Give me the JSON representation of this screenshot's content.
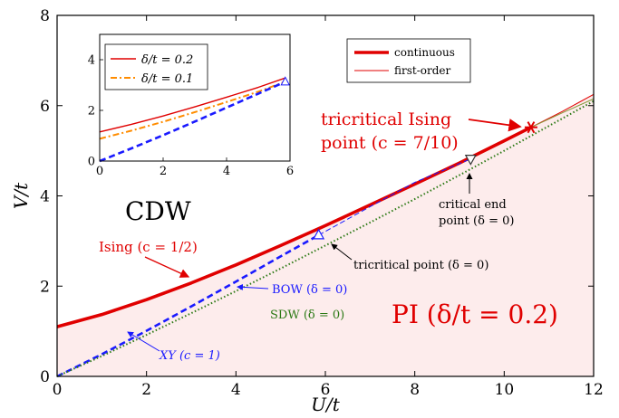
{
  "chart_data": [
    {
      "type": "line",
      "xlabel": "U/t",
      "ylabel": "V/t",
      "xlim": [
        0,
        12
      ],
      "ylim": [
        0,
        8
      ],
      "xticks": [
        "0",
        "2",
        "4",
        "6",
        "8",
        "10",
        "12"
      ],
      "yticks": [
        "0",
        "2",
        "4",
        "6",
        "8"
      ],
      "grid": false,
      "legend_position": "top-right",
      "legend": [
        {
          "label": "continuous",
          "style": "thick-solid",
          "color": "#e00000"
        },
        {
          "label": "first-order",
          "style": "thin-solid",
          "color": "#e00000"
        }
      ],
      "series": [
        {
          "key": "cdw_continuous",
          "color": "#e00000",
          "style": "thick-solid",
          "x": [
            0,
            1,
            2,
            3,
            4,
            5,
            6,
            7,
            8,
            9,
            10,
            10.6
          ],
          "y": [
            1.1,
            1.37,
            1.7,
            2.07,
            2.47,
            2.9,
            3.34,
            3.8,
            4.26,
            4.73,
            5.22,
            5.52
          ]
        },
        {
          "key": "cdw_first_order",
          "color": "#e00000",
          "style": "thin-solid",
          "x": [
            10.6,
            11.3,
            12
          ],
          "y": [
            5.52,
            5.87,
            6.25
          ]
        },
        {
          "key": "bow_continuous",
          "color": "#1a1aff",
          "style": "thick-dashed",
          "x": [
            0,
            1,
            2,
            3,
            4,
            5,
            5.85
          ],
          "y": [
            0,
            0.49,
            1.01,
            1.55,
            2.1,
            2.66,
            3.13
          ]
        },
        {
          "key": "bow_first_order",
          "color": "#1a1aff",
          "style": "thin-dashed",
          "x": [
            5.85,
            7,
            8,
            9.25
          ],
          "y": [
            3.13,
            3.76,
            4.3,
            4.82
          ]
        },
        {
          "key": "sdw",
          "color": "#2d7a16",
          "style": "dotted",
          "x": [
            0,
            1,
            2,
            3,
            4,
            5,
            6,
            7,
            8,
            9,
            10,
            11,
            12
          ],
          "y": [
            0,
            0.45,
            0.92,
            1.4,
            1.89,
            2.39,
            2.9,
            3.41,
            3.93,
            4.46,
            5.0,
            5.55,
            6.1
          ]
        },
        {
          "key": "continuation",
          "color": "#8a9a3a",
          "style": "thin-solid",
          "x": [
            10.6,
            11.3,
            12
          ],
          "y": [
            5.52,
            5.84,
            6.15
          ]
        }
      ],
      "markers": [
        {
          "key": "tricritical_ising",
          "shape": "star",
          "color": "#e00000",
          "x": 10.6,
          "y": 5.52
        },
        {
          "key": "tricritical_point",
          "shape": "triangle-up",
          "color": "#1a1aff",
          "x": 5.85,
          "y": 3.13
        },
        {
          "key": "critical_end",
          "shape": "triangle-down",
          "color": "#333333",
          "x": 9.25,
          "y": 4.82
        }
      ],
      "annotations": {
        "cdw": "CDW",
        "pi": "PI (δ/t = 0.2)",
        "ising": "Ising (c = 1/2)",
        "tricritical_ising_1": "tricritical Ising",
        "tricritical_ising_2": "point (c = 7/10)",
        "critical_end_1": "critical end",
        "critical_end_2": "point (δ = 0)",
        "tricritical_point": "tricritical point (δ = 0)",
        "bow": "BOW (δ = 0)",
        "sdw": "SDW (δ = 0)",
        "xy": "XY (c = 1)"
      },
      "colors": {
        "red": "#e00000",
        "blue": "#1a1aff",
        "green": "#2d7a16",
        "fill": "#fdecec"
      }
    },
    {
      "type": "line",
      "inset": true,
      "xlim": [
        0,
        6
      ],
      "ylim": [
        0,
        5
      ],
      "xticks": [
        "0",
        "2",
        "4",
        "6"
      ],
      "yticks": [
        "0",
        "2",
        "4"
      ],
      "legend_position": "top-left",
      "series": [
        {
          "name": "δ/t = 0.2",
          "color": "#e00000",
          "style": "solid",
          "x": [
            0,
            1,
            2,
            3,
            4,
            5,
            5.85
          ],
          "y": [
            1.15,
            1.45,
            1.78,
            2.14,
            2.52,
            2.91,
            3.28
          ]
        },
        {
          "name": "δ/t = 0.1",
          "color": "#ff8c00",
          "style": "dashdot",
          "x": [
            0,
            1,
            2,
            3,
            4,
            5,
            5.85
          ],
          "y": [
            0.88,
            1.2,
            1.55,
            1.93,
            2.33,
            2.74,
            3.13
          ]
        },
        {
          "key": "inset_bow",
          "color": "#1a1aff",
          "style": "thick-dashed",
          "x": [
            0,
            1,
            2,
            3,
            4,
            5,
            5.85
          ],
          "y": [
            0,
            0.5,
            1.02,
            1.56,
            2.11,
            2.66,
            3.13
          ]
        }
      ],
      "markers": [
        {
          "key": "inset_triangle",
          "shape": "triangle-up",
          "color": "#1a1aff",
          "x": 5.85,
          "y": 3.13
        }
      ]
    }
  ]
}
